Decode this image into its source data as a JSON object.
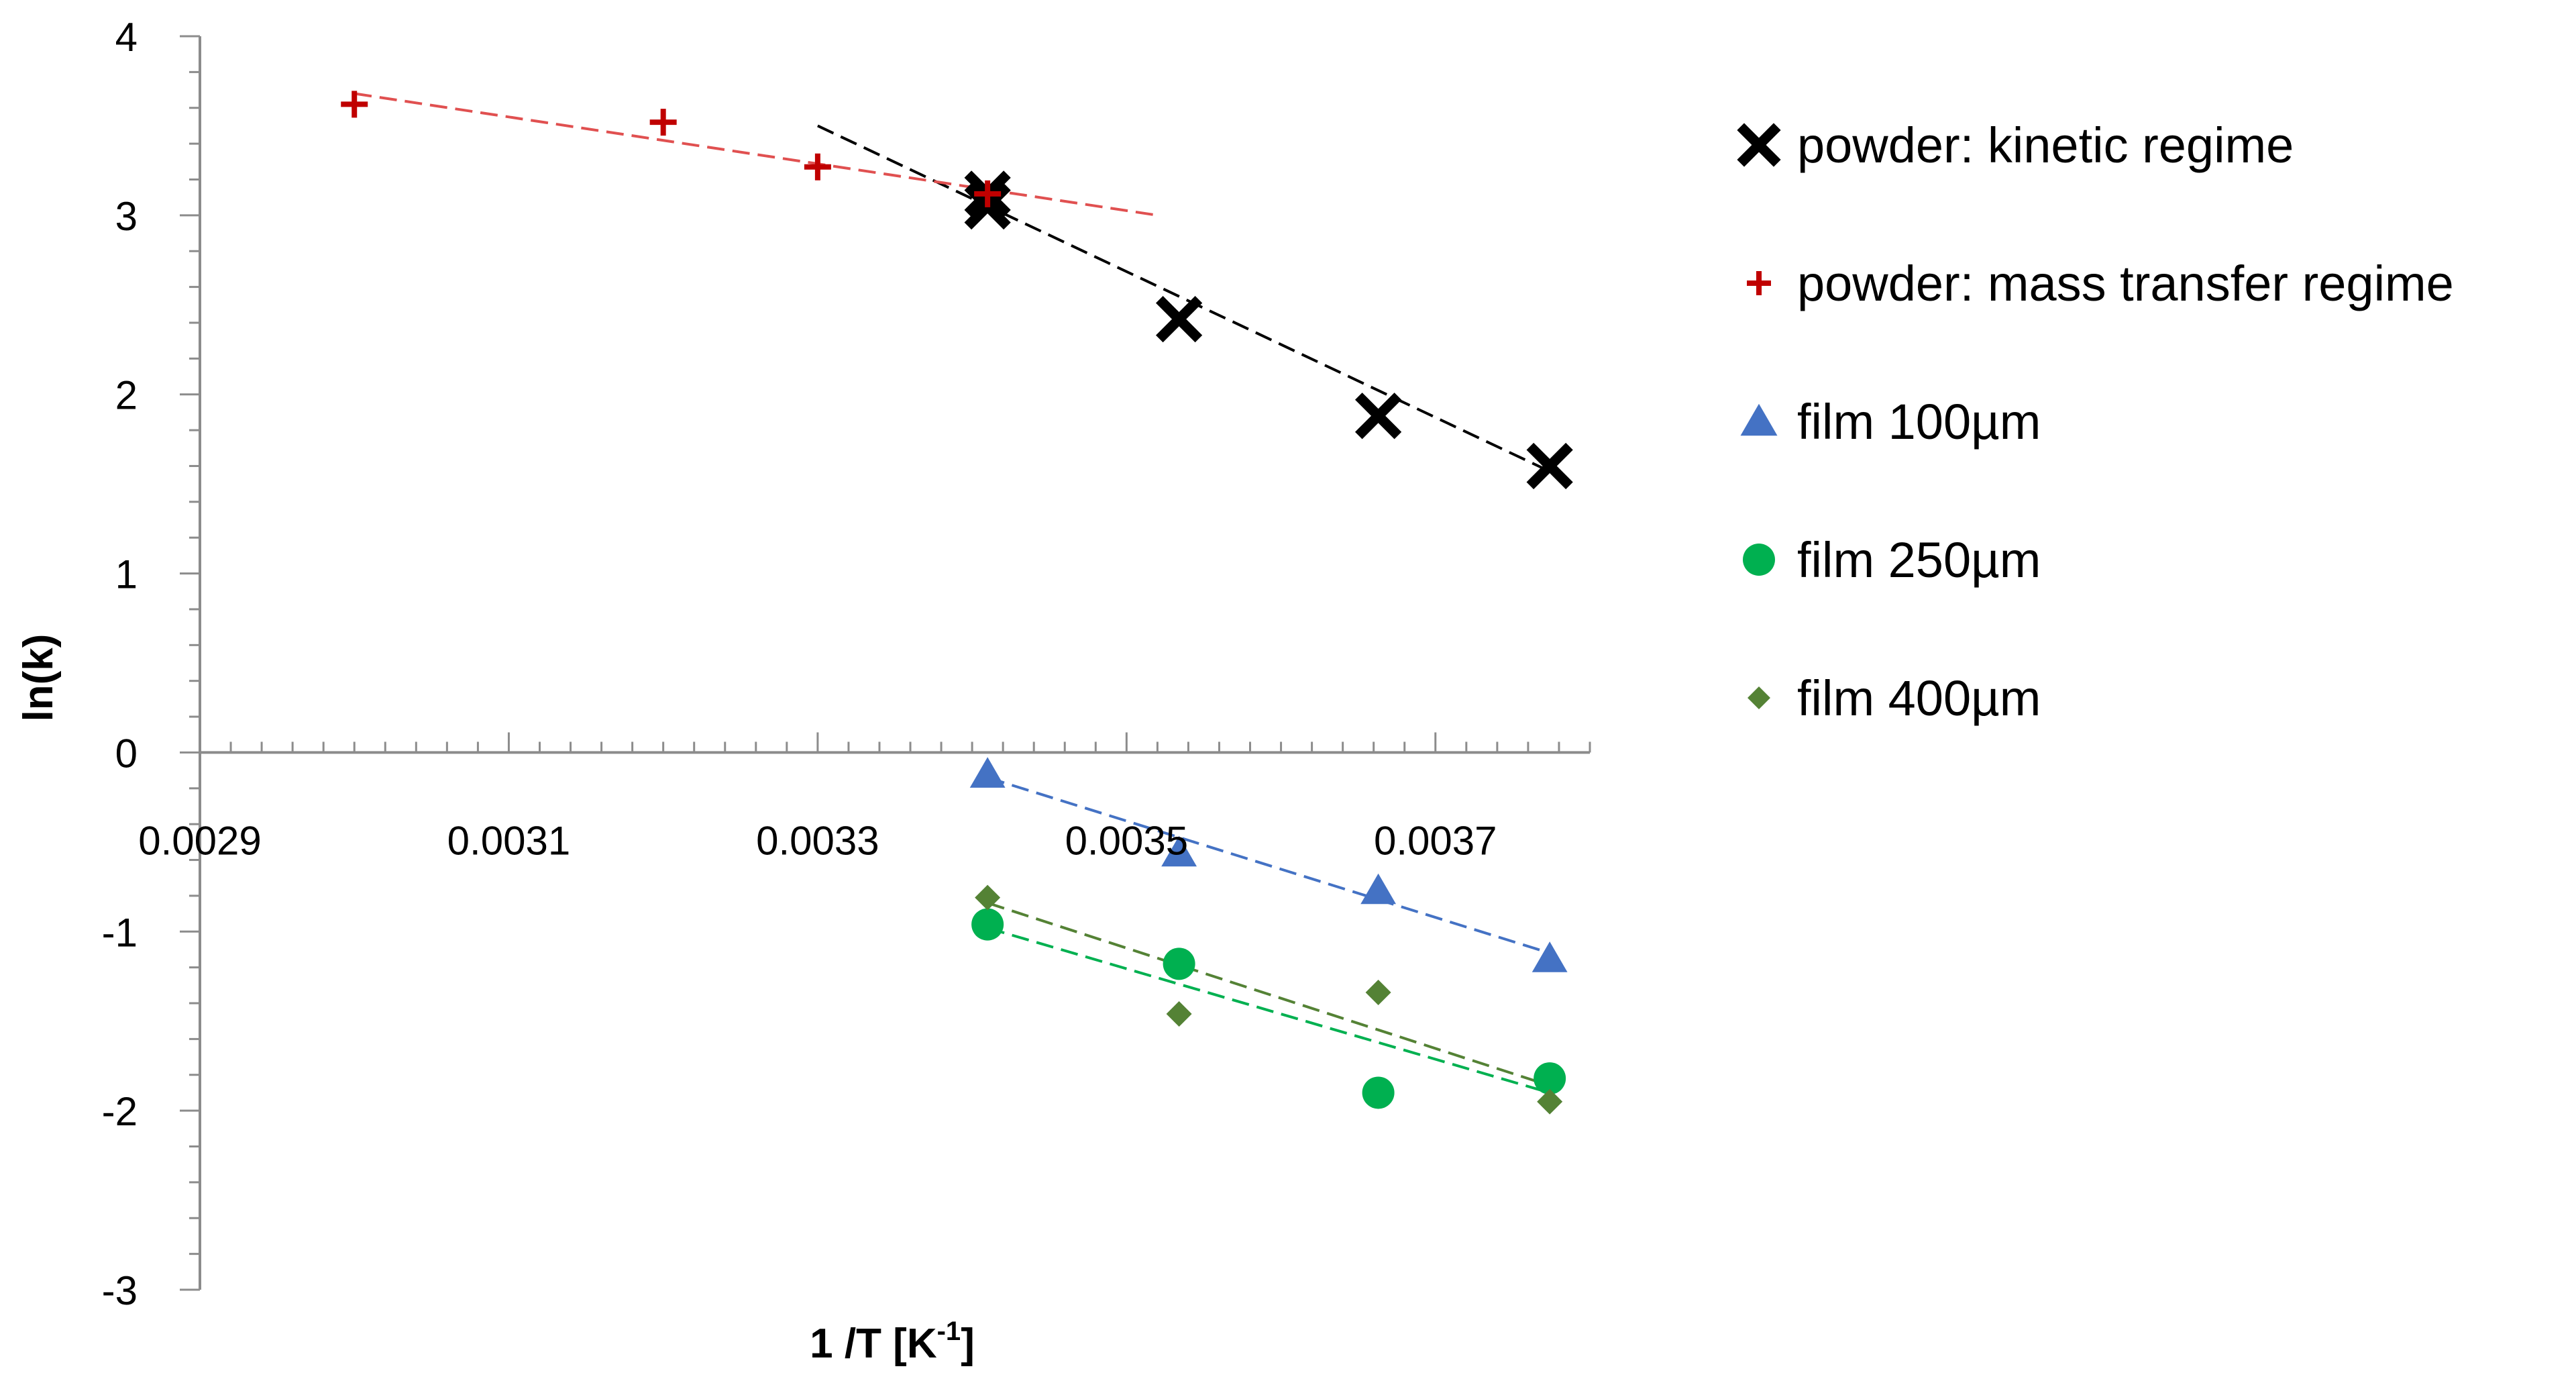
{
  "chart_data": {
    "type": "scatter",
    "xlabel": "1 /T [K",
    "xlabel_sup": "-1",
    "xlabel_end": "]",
    "ylabel": "ln(k)",
    "xlim": [
      0.0029,
      0.0038
    ],
    "ylim": [
      -3,
      4
    ],
    "xticks": [
      {
        "value": 0.0029,
        "label": "0.0029"
      },
      {
        "value": 0.0031,
        "label": "0.0031"
      },
      {
        "value": 0.0033,
        "label": "0.0033"
      },
      {
        "value": 0.0035,
        "label": "0.0035"
      },
      {
        "value": 0.0037,
        "label": "0.0037"
      }
    ],
    "yticks": [
      {
        "value": 4,
        "label": "4"
      },
      {
        "value": 3,
        "label": "3"
      },
      {
        "value": 2,
        "label": "2"
      },
      {
        "value": 1,
        "label": "1"
      },
      {
        "value": 0,
        "label": "0"
      },
      {
        "value": -1,
        "label": "-1"
      },
      {
        "value": -2,
        "label": "-2"
      },
      {
        "value": -3,
        "label": "-3"
      }
    ],
    "grid": false,
    "legend_position": "right",
    "series": [
      {
        "name": "powder: kinetic regime",
        "marker": "x",
        "color": "#000000",
        "points": [
          [
            0.00341,
            3.12
          ],
          [
            0.00341,
            3.05
          ],
          [
            0.003534,
            2.42
          ],
          [
            0.003663,
            1.88
          ],
          [
            0.003774,
            1.6
          ]
        ],
        "trendline": {
          "x": [
            0.0033,
            0.003774
          ],
          "y": [
            3.5,
            1.57
          ],
          "color": "#000000"
        }
      },
      {
        "name": "powder: mass transfer regime",
        "marker": "plus",
        "color": "#c00000",
        "points": [
          [
            0.003,
            3.62
          ],
          [
            0.0032,
            3.52
          ],
          [
            0.0033,
            3.27
          ],
          [
            0.00341,
            3.12
          ]
        ],
        "trendline": {
          "x": [
            0.003,
            0.00352
          ],
          "y": [
            3.68,
            3.0
          ],
          "color": "#e05050"
        }
      },
      {
        "name": "film 100µm",
        "marker": "triangle",
        "color": "#4472c4",
        "points": [
          [
            0.00341,
            -0.12
          ],
          [
            0.003534,
            -0.56
          ],
          [
            0.003663,
            -0.77
          ],
          [
            0.003774,
            -1.15
          ]
        ],
        "trendline": {
          "x": [
            0.00341,
            0.003774
          ],
          "y": [
            -0.14,
            -1.12
          ],
          "color": "#4472c4"
        }
      },
      {
        "name": "film 250µm",
        "marker": "circle",
        "color": "#00b050",
        "points": [
          [
            0.00341,
            -0.96
          ],
          [
            0.003534,
            -1.18
          ],
          [
            0.003663,
            -1.9
          ],
          [
            0.003774,
            -1.82
          ]
        ],
        "trendline": {
          "x": [
            0.00341,
            0.003774
          ],
          "y": [
            -0.98,
            -1.9
          ],
          "color": "#00b050"
        }
      },
      {
        "name": "film 400µm",
        "marker": "diamond",
        "color": "#548235",
        "points": [
          [
            0.00341,
            -0.81
          ],
          [
            0.003534,
            -1.46
          ],
          [
            0.003663,
            -1.34
          ],
          [
            0.003774,
            -1.95
          ]
        ],
        "trendline": {
          "x": [
            0.00341,
            0.003774
          ],
          "y": [
            -0.84,
            -1.86
          ],
          "color": "#548235"
        }
      }
    ]
  }
}
